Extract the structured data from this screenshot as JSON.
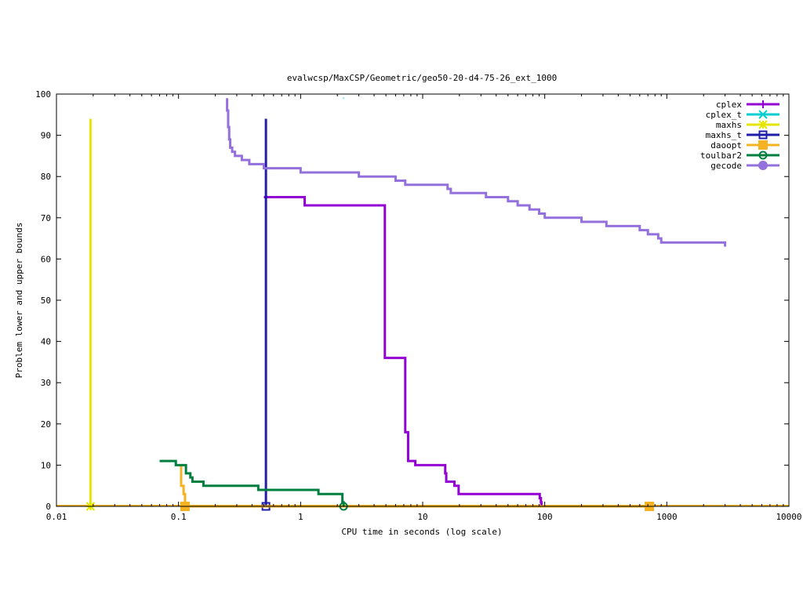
{
  "chart_data": {
    "type": "line",
    "title": "evalwcsp/MaxCSP/Geometric/geo50-20-d4-75-26_ext_1000",
    "xlabel": "CPU time in seconds (log scale)",
    "ylabel": "Problem lower and upper bounds",
    "xscale": "log",
    "xlim": [
      0.01,
      10000
    ],
    "ylim": [
      0,
      100
    ],
    "x_ticks": [
      0.01,
      0.1,
      1,
      10,
      100,
      1000,
      10000
    ],
    "x_tick_labels": [
      "0.01",
      "0.1",
      "1",
      "10",
      "100",
      "1000",
      "10000"
    ],
    "y_ticks": [
      0,
      10,
      20,
      30,
      40,
      50,
      60,
      70,
      80,
      90,
      100
    ],
    "y_tick_labels": [
      "0",
      "10",
      "20",
      "30",
      "40",
      "50",
      "60",
      "70",
      "80",
      "90",
      "100"
    ],
    "legend_position": "top-right",
    "series": [
      {
        "name": "cplex",
        "color": "#9400d3",
        "marker": "plus",
        "step": true,
        "points": [
          [
            0.5,
            75
          ],
          [
            1.08,
            75
          ],
          [
            1.08,
            73
          ],
          [
            4.9,
            73
          ],
          [
            4.9,
            36
          ],
          [
            7.2,
            36
          ],
          [
            7.2,
            18
          ],
          [
            7.6,
            18
          ],
          [
            7.6,
            11
          ],
          [
            8.7,
            11
          ],
          [
            8.7,
            10
          ],
          [
            15.3,
            10
          ],
          [
            15.3,
            8
          ],
          [
            15.6,
            8
          ],
          [
            15.6,
            6
          ],
          [
            18.2,
            6
          ],
          [
            18.2,
            5
          ],
          [
            19.7,
            5
          ],
          [
            19.7,
            3
          ],
          [
            91,
            3
          ],
          [
            91,
            2
          ],
          [
            93,
            2
          ],
          [
            93,
            1
          ],
          [
            94,
            1
          ],
          [
            94,
            0
          ]
        ],
        "markers": []
      },
      {
        "name": "cplex_t",
        "color": "#00ced1",
        "marker": "cross",
        "step": false,
        "points": [
          [
            2.25,
            99
          ]
        ],
        "markers": []
      },
      {
        "name": "maxhs",
        "color": "#e5e500",
        "marker": "star",
        "step": false,
        "points": [
          [
            0.019,
            94
          ],
          [
            0.019,
            0
          ]
        ],
        "markers": [
          [
            0.019,
            0
          ]
        ]
      },
      {
        "name": "maxhs_t",
        "color": "#1e1ea8",
        "marker": "square",
        "step": false,
        "points": [
          [
            0.52,
            94
          ],
          [
            0.52,
            0
          ]
        ],
        "markers": [
          [
            0.52,
            0
          ]
        ]
      },
      {
        "name": "daoopt",
        "color": "#f5b324",
        "marker": "filled-square",
        "step": true,
        "points": [
          [
            0.105,
            10
          ],
          [
            0.105,
            5
          ],
          [
            0.11,
            5
          ],
          [
            0.11,
            3
          ],
          [
            0.113,
            3
          ],
          [
            0.113,
            0
          ],
          [
            720,
            0
          ]
        ],
        "markers": [
          [
            0.113,
            0
          ],
          [
            720,
            0
          ]
        ]
      },
      {
        "name": "toulbar2",
        "color": "#007f3f",
        "marker": "circle",
        "step": true,
        "points": [
          [
            0.07,
            11
          ],
          [
            0.095,
            11
          ],
          [
            0.095,
            10
          ],
          [
            0.115,
            10
          ],
          [
            0.115,
            8
          ],
          [
            0.125,
            8
          ],
          [
            0.125,
            7
          ],
          [
            0.13,
            7
          ],
          [
            0.13,
            6
          ],
          [
            0.16,
            6
          ],
          [
            0.16,
            5
          ],
          [
            0.45,
            5
          ],
          [
            0.45,
            4
          ],
          [
            1.4,
            4
          ],
          [
            1.4,
            3
          ],
          [
            2.2,
            3
          ],
          [
            2.2,
            1
          ],
          [
            2.25,
            1
          ],
          [
            2.25,
            0
          ]
        ],
        "markers": [
          [
            2.25,
            0
          ]
        ]
      },
      {
        "name": "gecode",
        "color": "#9370db",
        "marker": "filled-circle",
        "step": true,
        "points": [
          [
            0.25,
            99
          ],
          [
            0.25,
            96
          ],
          [
            0.255,
            96
          ],
          [
            0.255,
            92
          ],
          [
            0.26,
            92
          ],
          [
            0.26,
            89
          ],
          [
            0.265,
            89
          ],
          [
            0.265,
            87
          ],
          [
            0.275,
            87
          ],
          [
            0.275,
            86
          ],
          [
            0.29,
            86
          ],
          [
            0.29,
            85
          ],
          [
            0.33,
            85
          ],
          [
            0.33,
            84
          ],
          [
            0.38,
            84
          ],
          [
            0.38,
            83
          ],
          [
            0.5,
            83
          ],
          [
            0.5,
            82
          ],
          [
            1.0,
            82
          ],
          [
            1.0,
            81
          ],
          [
            3.0,
            81
          ],
          [
            3.0,
            80
          ],
          [
            6.0,
            80
          ],
          [
            6.0,
            79
          ],
          [
            7.2,
            79
          ],
          [
            7.2,
            78
          ],
          [
            16,
            78
          ],
          [
            16,
            77
          ],
          [
            17,
            77
          ],
          [
            17,
            76
          ],
          [
            33,
            76
          ],
          [
            33,
            75
          ],
          [
            50,
            75
          ],
          [
            50,
            74
          ],
          [
            60,
            74
          ],
          [
            60,
            73
          ],
          [
            75,
            73
          ],
          [
            75,
            72
          ],
          [
            90,
            72
          ],
          [
            90,
            71
          ],
          [
            100,
            71
          ],
          [
            100,
            70
          ],
          [
            200,
            70
          ],
          [
            200,
            69
          ],
          [
            320,
            69
          ],
          [
            320,
            68
          ],
          [
            600,
            68
          ],
          [
            600,
            67
          ],
          [
            700,
            67
          ],
          [
            700,
            66
          ],
          [
            850,
            66
          ],
          [
            850,
            65
          ],
          [
            900,
            65
          ],
          [
            900,
            64
          ],
          [
            3000,
            64
          ],
          [
            3000,
            63
          ]
        ],
        "markers": []
      }
    ]
  }
}
